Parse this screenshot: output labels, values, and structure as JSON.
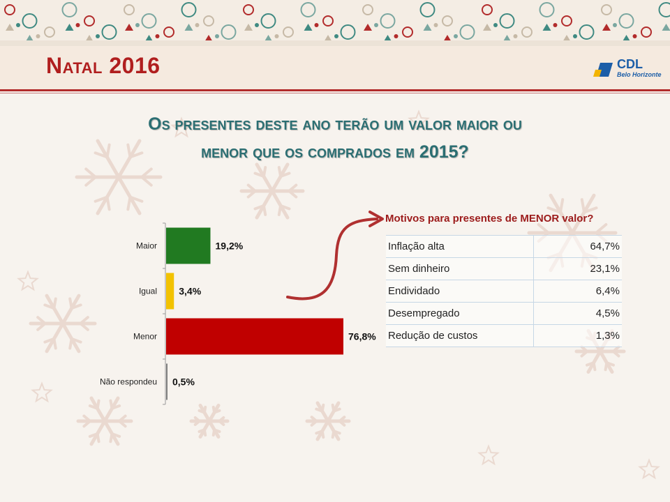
{
  "slide": {
    "title": "Natal 2016",
    "question_line1": "Os presentes deste ano terão um valor maior ou",
    "question_line2": "menor que os comprados em 2015?"
  },
  "logo": {
    "name": "CDL",
    "subtitle": "Belo Horizonte",
    "color": "#1c5ea8"
  },
  "chart_data": {
    "type": "bar",
    "orientation": "horizontal",
    "categories": [
      "Maior",
      "Igual",
      "Menor",
      "Não respondeu"
    ],
    "values": [
      19.2,
      3.4,
      76.8,
      0.5
    ],
    "value_labels": [
      "19,2%",
      "3,4%",
      "76,8%",
      "0,5%"
    ],
    "colors": [
      "#217a21",
      "#f2c200",
      "#c00000",
      "#7f7f7f"
    ],
    "xlim": [
      0,
      100
    ],
    "grid": false,
    "legend": false
  },
  "reasons_table": {
    "title": "Motivos para presentes de MENOR valor?",
    "rows": [
      {
        "label": "Inflação alta",
        "value": "64,7%"
      },
      {
        "label": "Sem dinheiro",
        "value": "23,1%"
      },
      {
        "label": "Endividado",
        "value": "6,4%"
      },
      {
        "label": "Desempregado",
        "value": "4,5%"
      },
      {
        "label": "Redução de custos",
        "value": "1,3%"
      }
    ]
  },
  "colors": {
    "title_red": "#b01e1e",
    "question_teal": "#2b6e72",
    "table_title_red": "#9c1b1b",
    "arrow_red": "#b03030"
  }
}
